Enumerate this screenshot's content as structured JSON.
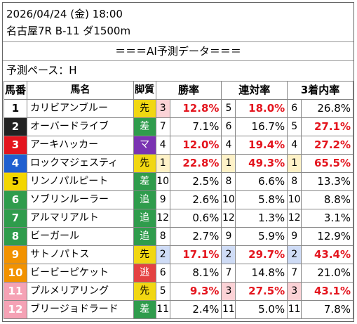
{
  "header": {
    "datetime": "2026/04/24 (金) 18:00",
    "race": "名古屋7R B-11 ダ1500m",
    "banner": "＝＝＝AI予測データ＝＝＝",
    "pace": "予測ペース：H"
  },
  "columns": {
    "num": "馬番",
    "name": "馬名",
    "style": "脚質",
    "win": "勝率",
    "place2": "連対率",
    "place3": "3着内率"
  },
  "colors": {
    "bg1": "#ffffff",
    "bg2": "#222222",
    "bg3": "#e4151e",
    "bg4": "#1f5fd0",
    "bg5": "#f3d600",
    "bg6": "#2f9c4c",
    "bg7": "#f29200",
    "bg8": "#f5a2b5",
    "accent_red": "#e4151e"
  },
  "rows": [
    {
      "num": "1",
      "name": "カリビアンブルー",
      "style": "先",
      "wr": "3",
      "w": "12.8%",
      "pr": "5",
      "p": "18.0%",
      "tr": "6",
      "t": "26.8%"
    },
    {
      "num": "2",
      "name": "オーバードライブ",
      "style": "差",
      "wr": "7",
      "w": "7.1%",
      "pr": "6",
      "p": "16.7%",
      "tr": "5",
      "t": "27.1%"
    },
    {
      "num": "3",
      "name": "アーキハッカー",
      "style": "マ",
      "wr": "4",
      "w": "12.0%",
      "pr": "4",
      "p": "19.4%",
      "tr": "4",
      "t": "27.2%"
    },
    {
      "num": "4",
      "name": "ロックマジェスティ",
      "style": "先",
      "wr": "1",
      "w": "22.8%",
      "pr": "1",
      "p": "49.3%",
      "tr": "1",
      "t": "65.5%"
    },
    {
      "num": "5",
      "name": "リンノパルピート",
      "style": "差",
      "wr": "10",
      "w": "2.5%",
      "pr": "8",
      "p": "6.6%",
      "tr": "8",
      "t": "13.3%"
    },
    {
      "num": "6",
      "name": "ソブリンルーラー",
      "style": "追",
      "wr": "9",
      "w": "2.6%",
      "pr": "10",
      "p": "5.8%",
      "tr": "10",
      "t": "8.8%"
    },
    {
      "num": "7",
      "name": "アルマリアルト",
      "style": "追",
      "wr": "12",
      "w": "0.6%",
      "pr": "12",
      "p": "1.3%",
      "tr": "12",
      "t": "3.1%"
    },
    {
      "num": "8",
      "name": "ビーガール",
      "style": "追",
      "wr": "8",
      "w": "2.7%",
      "pr": "9",
      "p": "5.9%",
      "tr": "9",
      "t": "12.9%"
    },
    {
      "num": "9",
      "name": "サトノパトス",
      "style": "先",
      "wr": "2",
      "w": "17.1%",
      "pr": "2",
      "p": "29.7%",
      "tr": "2",
      "t": "43.4%"
    },
    {
      "num": "10",
      "name": "ビービーピケット",
      "style": "逃",
      "wr": "6",
      "w": "8.1%",
      "pr": "7",
      "p": "14.8%",
      "tr": "7",
      "t": "21.0%"
    },
    {
      "num": "11",
      "name": "プルメリアリング",
      "style": "先",
      "wr": "5",
      "w": "9.3%",
      "pr": "3",
      "p": "27.5%",
      "tr": "3",
      "t": "43.1%"
    },
    {
      "num": "12",
      "name": "ブリージョドラード",
      "style": "差",
      "wr": "11",
      "w": "2.4%",
      "pr": "11",
      "p": "5.0%",
      "tr": "11",
      "t": "7.8%"
    }
  ]
}
